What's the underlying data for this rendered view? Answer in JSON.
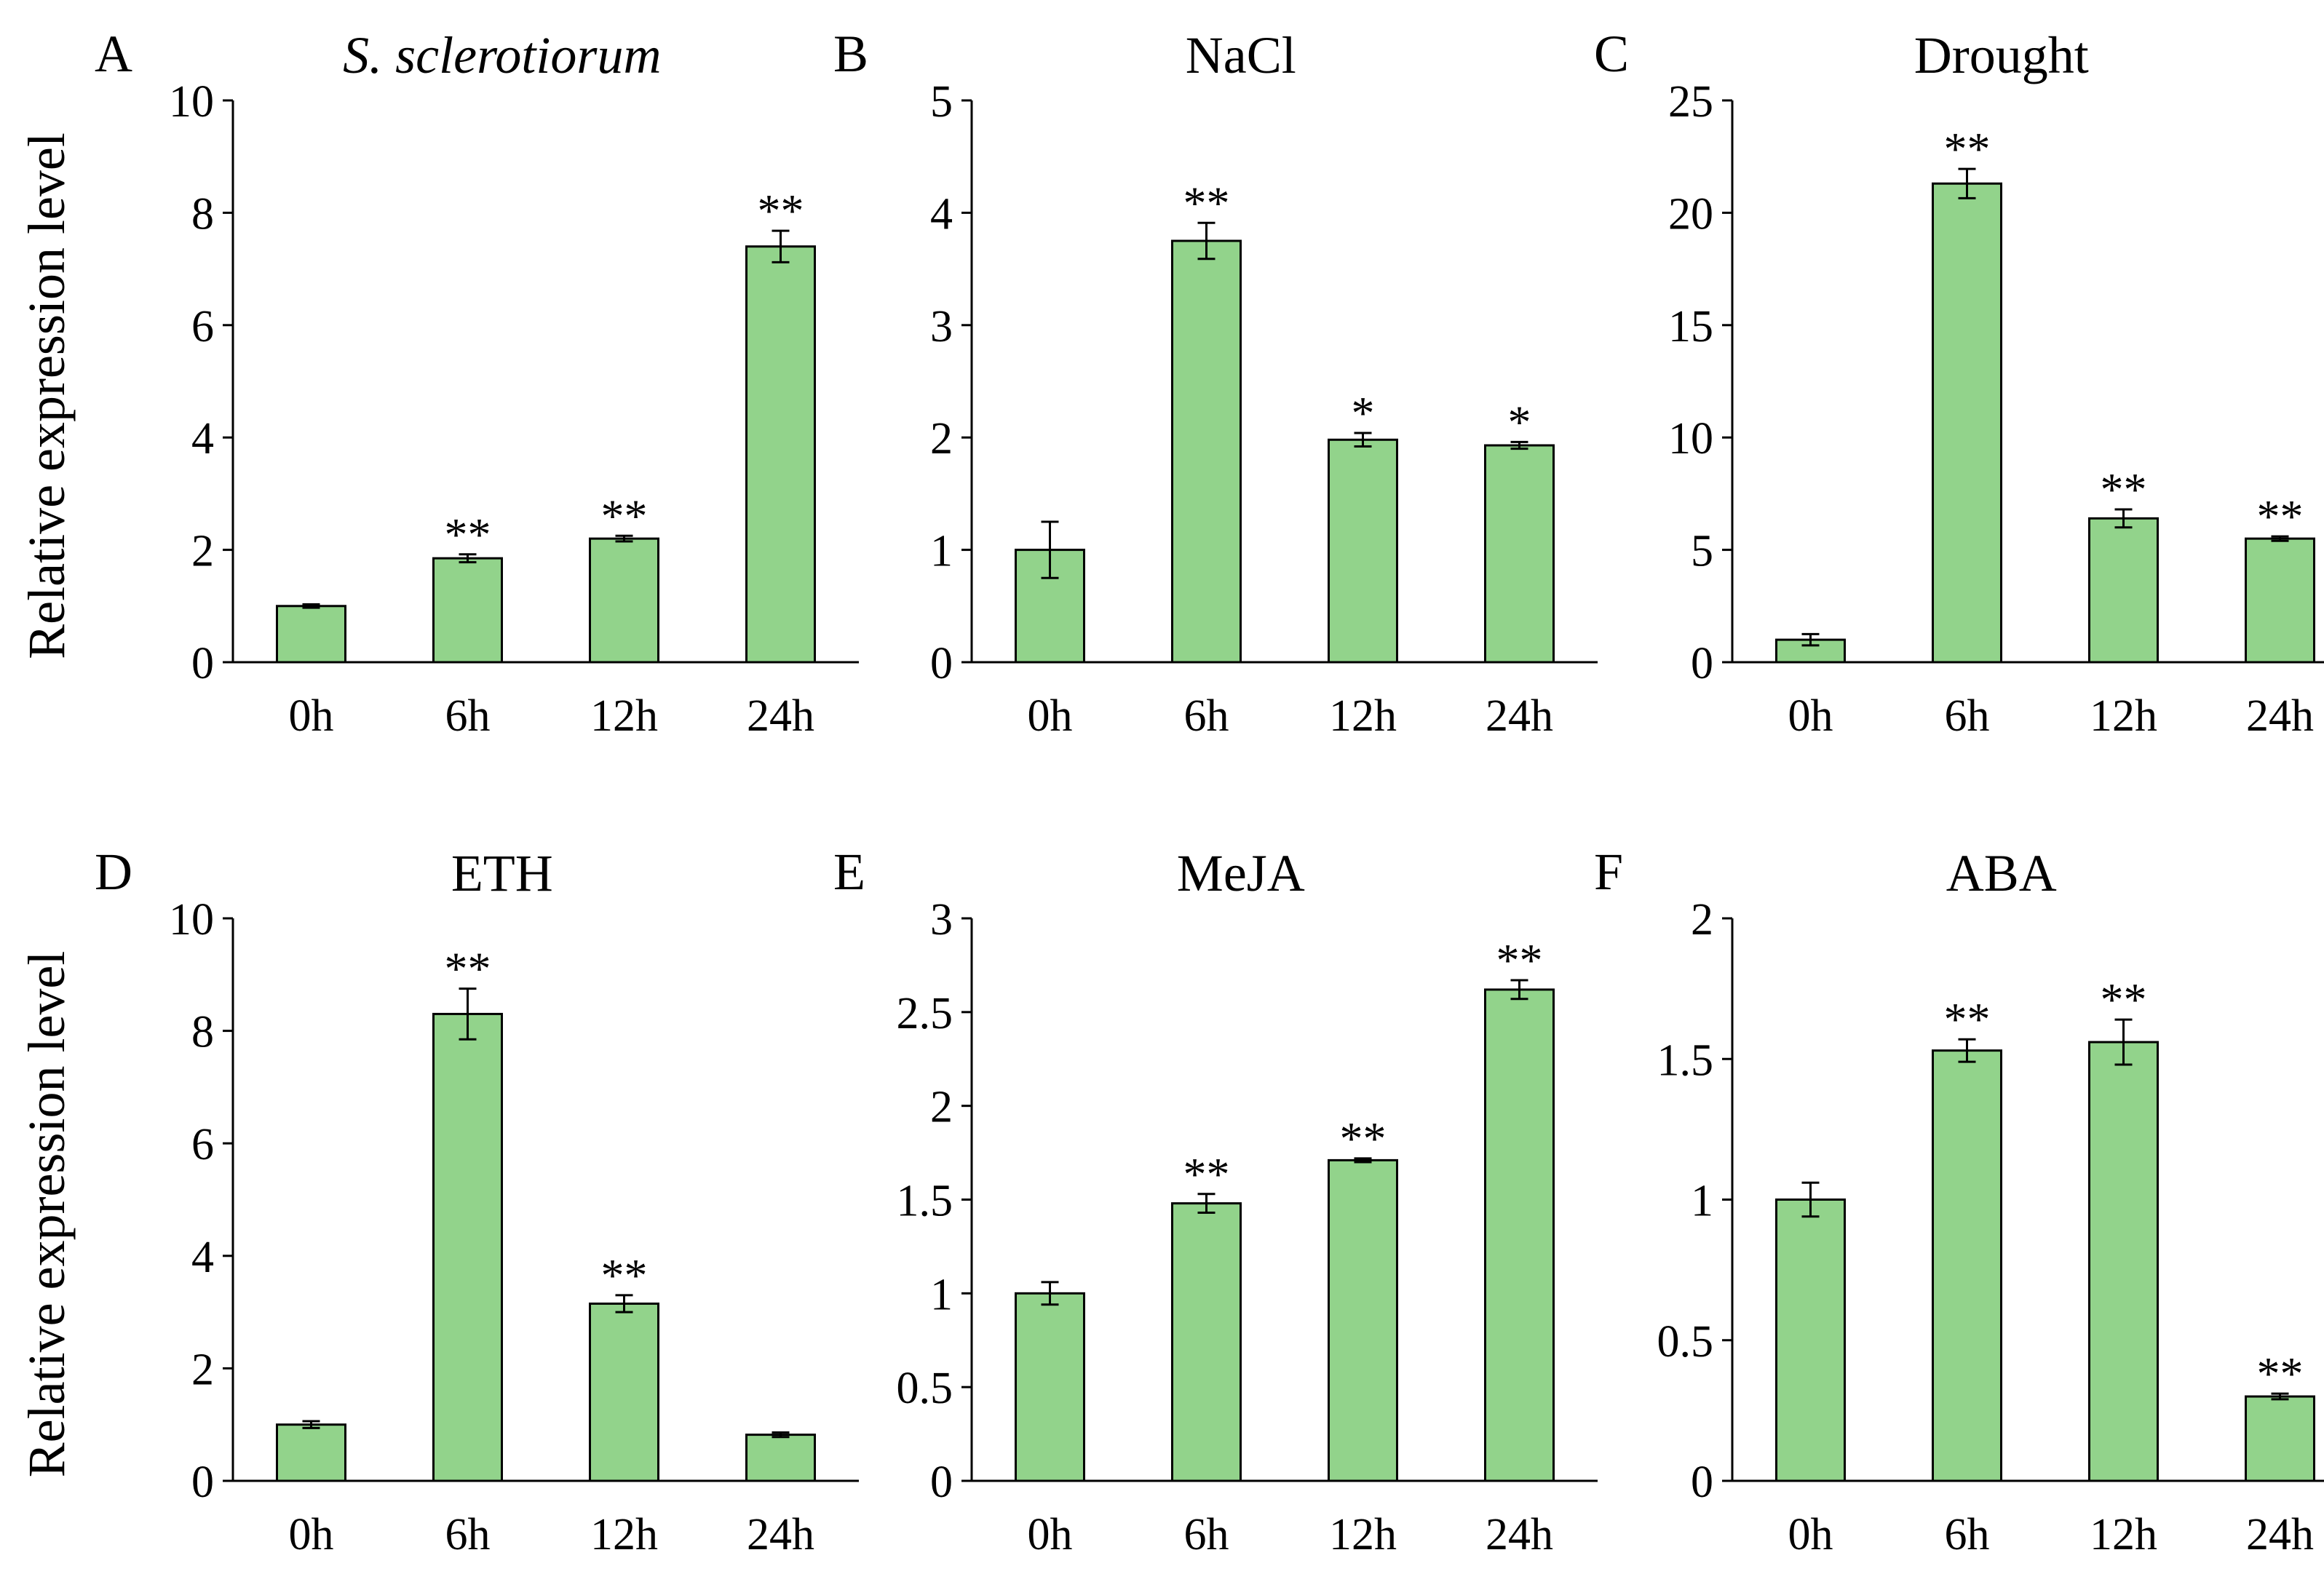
{
  "figure": {
    "y_axis_label": "Relative expression level"
  },
  "chart_data": [
    {
      "type": "bar",
      "panel": "A",
      "title": "S. sclerotiorum",
      "title_italic": true,
      "categories": [
        "0h",
        "6h",
        "12h",
        "24h"
      ],
      "values": [
        1.0,
        1.85,
        2.2,
        7.4
      ],
      "errors": [
        0.03,
        0.07,
        0.05,
        0.28
      ],
      "significance": [
        "",
        "**",
        "**",
        "**"
      ],
      "ylim": [
        0,
        10
      ],
      "yticks": [
        0,
        2,
        4,
        6,
        8,
        10
      ],
      "ytick_labels": [
        "0",
        "2",
        "4",
        "6",
        "8",
        "10"
      ],
      "bar_color": "#92d38b",
      "ylabel": "Relative expression level"
    },
    {
      "type": "bar",
      "panel": "B",
      "title": "NaCl",
      "title_italic": false,
      "categories": [
        "0h",
        "6h",
        "12h",
        "24h"
      ],
      "values": [
        1.0,
        3.75,
        1.98,
        1.93
      ],
      "errors": [
        0.25,
        0.16,
        0.06,
        0.03
      ],
      "significance": [
        "",
        "**",
        "*",
        "*"
      ],
      "ylim": [
        0,
        5
      ],
      "yticks": [
        0,
        1,
        2,
        3,
        4,
        5
      ],
      "ytick_labels": [
        "0",
        "1",
        "2",
        "3",
        "4",
        "5"
      ],
      "bar_color": "#92d38b",
      "ylabel": ""
    },
    {
      "type": "bar",
      "panel": "C",
      "title": "Drought",
      "title_italic": false,
      "categories": [
        "0h",
        "6h",
        "12h",
        "24h"
      ],
      "values": [
        1.0,
        21.3,
        6.4,
        5.5
      ],
      "errors": [
        0.25,
        0.65,
        0.4,
        0.1
      ],
      "significance": [
        "",
        "**",
        "**",
        "**"
      ],
      "ylim": [
        0,
        25
      ],
      "yticks": [
        0,
        5,
        10,
        15,
        20,
        25
      ],
      "ytick_labels": [
        "0",
        "5",
        "10",
        "15",
        "20",
        "25"
      ],
      "bar_color": "#92d38b",
      "ylabel": ""
    },
    {
      "type": "bar",
      "panel": "D",
      "title": "ETH",
      "title_italic": false,
      "categories": [
        "0h",
        "6h",
        "12h",
        "24h"
      ],
      "values": [
        1.0,
        8.3,
        3.15,
        0.82
      ],
      "errors": [
        0.06,
        0.45,
        0.15,
        0.04
      ],
      "significance": [
        "",
        "**",
        "**",
        ""
      ],
      "ylim": [
        0,
        10
      ],
      "yticks": [
        0,
        2,
        4,
        6,
        8,
        10
      ],
      "ytick_labels": [
        "0",
        "2",
        "4",
        "6",
        "8",
        "10"
      ],
      "bar_color": "#92d38b",
      "ylabel": "Relative expression level"
    },
    {
      "type": "bar",
      "panel": "E",
      "title": "MeJA",
      "title_italic": false,
      "categories": [
        "0h",
        "6h",
        "12h",
        "24h"
      ],
      "values": [
        1.0,
        1.48,
        1.71,
        2.62
      ],
      "errors": [
        0.06,
        0.05,
        0.01,
        0.05
      ],
      "significance": [
        "",
        "**",
        "**",
        "**"
      ],
      "ylim": [
        0,
        3
      ],
      "yticks": [
        0,
        0.5,
        1,
        1.5,
        2,
        2.5,
        3
      ],
      "ytick_labels": [
        "0",
        "0.5",
        "1",
        "1.5",
        "2",
        "2.5",
        "3"
      ],
      "bar_color": "#92d38b",
      "ylabel": ""
    },
    {
      "type": "bar",
      "panel": "F",
      "title": "ABA",
      "title_italic": false,
      "categories": [
        "0h",
        "6h",
        "12h",
        "24h"
      ],
      "values": [
        1.0,
        1.53,
        1.56,
        0.3
      ],
      "errors": [
        0.06,
        0.04,
        0.08,
        0.01
      ],
      "significance": [
        "",
        "**",
        "**",
        "**"
      ],
      "ylim": [
        0,
        2
      ],
      "yticks": [
        0,
        0.5,
        1,
        1.5,
        2
      ],
      "ytick_labels": [
        "0",
        "0.5",
        "1",
        "1.5",
        "2"
      ],
      "bar_color": "#92d38b",
      "ylabel": ""
    }
  ]
}
